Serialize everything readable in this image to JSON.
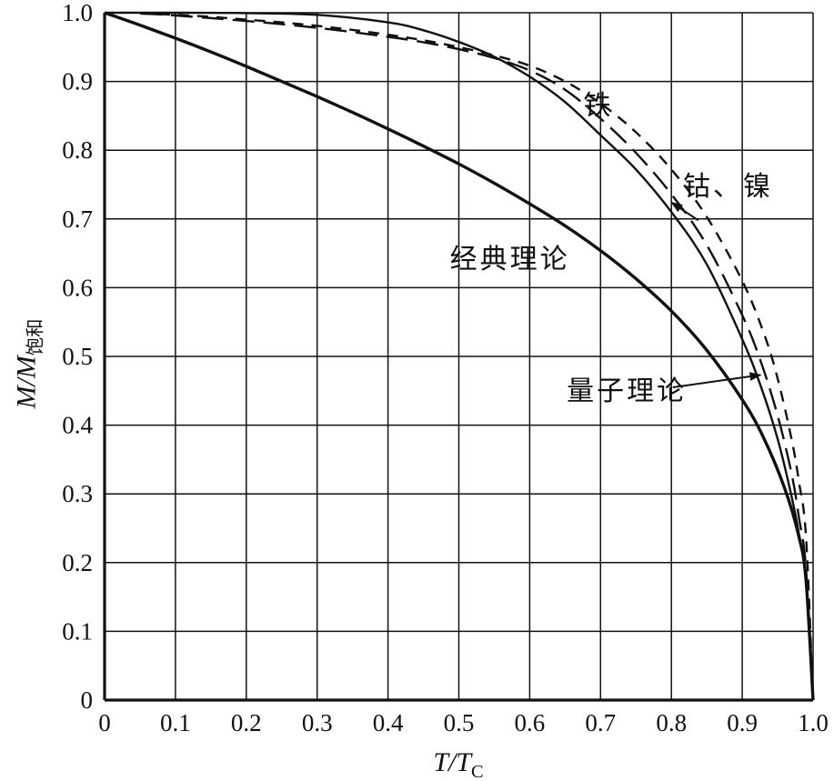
{
  "figure": {
    "background": "#ffffff"
  },
  "chart_data": {
    "type": "line",
    "title": "",
    "xlabel_main": "T/T",
    "xlabel_sub": "C",
    "ylabel_main": "M/M",
    "ylabel_sub": "饱和",
    "xlim": [
      0,
      1
    ],
    "ylim": [
      0,
      1
    ],
    "grid": true,
    "legend_position": "none",
    "axis_color": "#111111",
    "x_ticks": [
      "0",
      "0.1",
      "0.2",
      "0.3",
      "0.4",
      "0.5",
      "0.6",
      "0.7",
      "0.8",
      "0.9",
      "1.0"
    ],
    "y_ticks": [
      "0",
      "0.1",
      "0.2",
      "0.3",
      "0.4",
      "0.5",
      "0.6",
      "0.7",
      "0.8",
      "0.9",
      "1.0"
    ],
    "series": [
      {
        "id": "classical-theory",
        "name": "经典理论",
        "line": "solid",
        "dash": "",
        "width": 3.4,
        "points": [
          [
            0,
            1.0
          ],
          [
            0.05,
            0.982
          ],
          [
            0.1,
            0.963
          ],
          [
            0.15,
            0.943
          ],
          [
            0.2,
            0.922
          ],
          [
            0.25,
            0.9
          ],
          [
            0.3,
            0.878
          ],
          [
            0.35,
            0.855
          ],
          [
            0.4,
            0.831
          ],
          [
            0.45,
            0.806
          ],
          [
            0.5,
            0.78
          ],
          [
            0.55,
            0.752
          ],
          [
            0.6,
            0.722
          ],
          [
            0.65,
            0.69
          ],
          [
            0.7,
            0.654
          ],
          [
            0.75,
            0.613
          ],
          [
            0.8,
            0.566
          ],
          [
            0.85,
            0.509
          ],
          [
            0.9,
            0.437
          ],
          [
            0.93,
            0.382
          ],
          [
            0.96,
            0.308
          ],
          [
            0.98,
            0.238
          ],
          [
            0.99,
            0.175
          ],
          [
            1,
            0
          ]
        ]
      },
      {
        "id": "quantum-theory",
        "name": "量子理论",
        "line": "solid",
        "dash": "",
        "width": 2.4,
        "points": [
          [
            0,
            1.0
          ],
          [
            0.1,
            1.0
          ],
          [
            0.2,
            0.9995
          ],
          [
            0.3,
            0.997
          ],
          [
            0.4,
            0.986
          ],
          [
            0.45,
            0.9745
          ],
          [
            0.5,
            0.9575
          ],
          [
            0.55,
            0.936
          ],
          [
            0.6,
            0.907
          ],
          [
            0.65,
            0.87
          ],
          [
            0.7,
            0.822
          ],
          [
            0.75,
            0.772
          ],
          [
            0.8,
            0.71
          ],
          [
            0.85,
            0.634
          ],
          [
            0.9,
            0.525
          ],
          [
            0.925,
            0.46
          ],
          [
            0.95,
            0.38
          ],
          [
            0.97,
            0.295
          ],
          [
            0.98,
            0.242
          ],
          [
            0.99,
            0.172
          ],
          [
            1,
            0
          ]
        ]
      },
      {
        "id": "cobalt-nickel",
        "name": "钴、镍",
        "line": "dashed-long",
        "dash": "24 10",
        "width": 2.4,
        "points": [
          [
            0.05,
            0.999
          ],
          [
            0.1,
            0.996
          ],
          [
            0.2,
            0.988
          ],
          [
            0.3,
            0.978
          ],
          [
            0.4,
            0.965
          ],
          [
            0.45,
            0.957
          ],
          [
            0.5,
            0.947
          ],
          [
            0.55,
            0.934
          ],
          [
            0.6,
            0.916
          ],
          [
            0.65,
            0.888
          ],
          [
            0.7,
            0.846
          ],
          [
            0.75,
            0.796
          ],
          [
            0.8,
            0.736
          ],
          [
            0.85,
            0.662
          ],
          [
            0.9,
            0.56
          ],
          [
            0.925,
            0.496
          ],
          [
            0.95,
            0.414
          ],
          [
            0.97,
            0.328
          ],
          [
            0.98,
            0.266
          ],
          [
            0.99,
            0.192
          ],
          [
            1,
            0
          ]
        ]
      },
      {
        "id": "iron",
        "name": "铁",
        "line": "dashed-short",
        "dash": "12 9",
        "width": 2.4,
        "points": [
          [
            0.05,
            0.999
          ],
          [
            0.1,
            0.997
          ],
          [
            0.15,
            0.994
          ],
          [
            0.2,
            0.99
          ],
          [
            0.25,
            0.986
          ],
          [
            0.3,
            0.981
          ],
          [
            0.35,
            0.975
          ],
          [
            0.4,
            0.968
          ],
          [
            0.45,
            0.96
          ],
          [
            0.5,
            0.95
          ],
          [
            0.55,
            0.938
          ],
          [
            0.6,
            0.923
          ],
          [
            0.65,
            0.9
          ],
          [
            0.7,
            0.868
          ],
          [
            0.75,
            0.826
          ],
          [
            0.8,
            0.772
          ],
          [
            0.85,
            0.703
          ],
          [
            0.9,
            0.61
          ],
          [
            0.93,
            0.535
          ],
          [
            0.95,
            0.468
          ],
          [
            0.97,
            0.378
          ],
          [
            0.98,
            0.318
          ],
          [
            0.99,
            0.238
          ],
          [
            1,
            0
          ]
        ]
      }
    ],
    "annotations": [
      {
        "text": "铁",
        "x": 0.697,
        "y": 0.864,
        "arrow": null
      },
      {
        "text": "钴、镍",
        "x": 0.88,
        "y": 0.746,
        "arrow": {
          "from": [
            0.838,
            0.698
          ],
          "to": [
            0.8,
            0.724
          ]
        }
      },
      {
        "text": "经典理论",
        "x": 0.572,
        "y": 0.64,
        "arrow": null
      },
      {
        "text": "量子理论",
        "x": 0.737,
        "y": 0.448,
        "arrow": {
          "from": [
            0.802,
            0.455
          ],
          "to": [
            0.926,
            0.473
          ]
        }
      }
    ]
  }
}
